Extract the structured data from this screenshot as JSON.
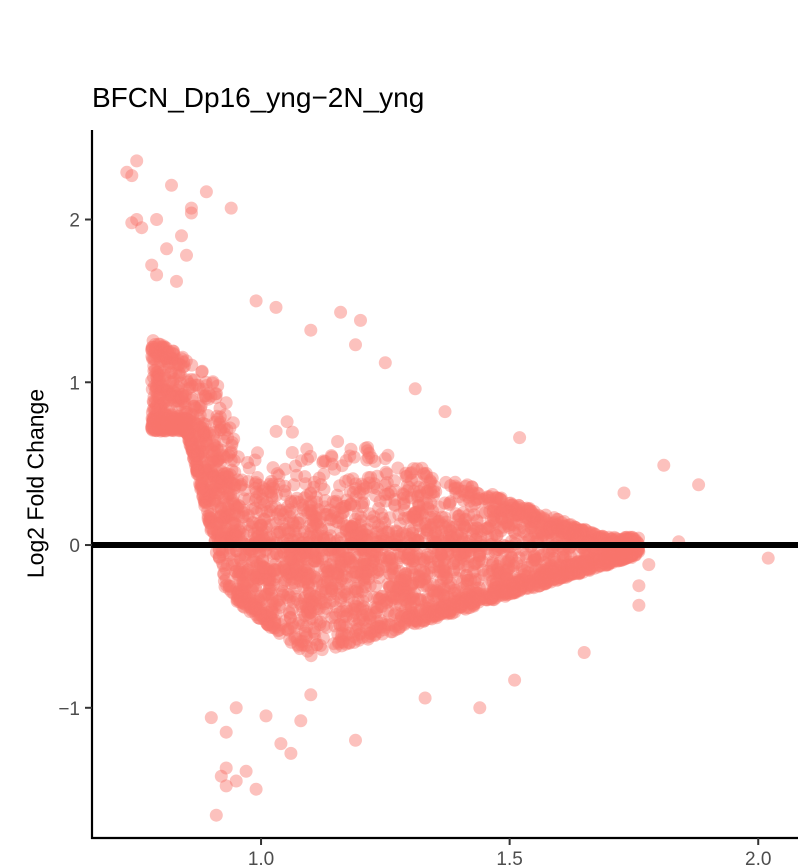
{
  "chart_data": {
    "type": "scatter",
    "title": "BFCN_Dp16_yng−2N_yng",
    "xlabel": "",
    "ylabel": "Log2 Fold Change",
    "xlim": [
      0.66,
      2.08
    ],
    "ylim": [
      -1.8,
      2.55
    ],
    "x_ticks": [
      {
        "value": 1.0,
        "label": "1.0"
      },
      {
        "value": 1.5,
        "label": "1.5"
      },
      {
        "value": 2.0,
        "label": "2.0"
      }
    ],
    "y_ticks": [
      {
        "value": -1,
        "label": "−1"
      },
      {
        "value": 0,
        "label": "0"
      },
      {
        "value": 1,
        "label": "1"
      },
      {
        "value": 2,
        "label": "2"
      }
    ],
    "reference_line": {
      "y": 0,
      "color": "#000000"
    },
    "point_color": "#F8766D",
    "point_opacity": 0.45,
    "grid": false,
    "legend": "none",
    "outlier_points": [
      {
        "x": 0.73,
        "y": 2.29
      },
      {
        "x": 0.74,
        "y": 2.27
      },
      {
        "x": 0.75,
        "y": 2.36
      },
      {
        "x": 0.74,
        "y": 1.98
      },
      {
        "x": 0.75,
        "y": 2.0
      },
      {
        "x": 0.76,
        "y": 1.95
      },
      {
        "x": 0.79,
        "y": 2.0
      },
      {
        "x": 0.82,
        "y": 2.21
      },
      {
        "x": 0.89,
        "y": 2.17
      },
      {
        "x": 0.86,
        "y": 2.07
      },
      {
        "x": 0.86,
        "y": 2.04
      },
      {
        "x": 0.94,
        "y": 2.07
      },
      {
        "x": 0.78,
        "y": 1.72
      },
      {
        "x": 0.81,
        "y": 1.82
      },
      {
        "x": 0.84,
        "y": 1.9
      },
      {
        "x": 0.85,
        "y": 1.78
      },
      {
        "x": 0.79,
        "y": 1.66
      },
      {
        "x": 0.83,
        "y": 1.62
      },
      {
        "x": 0.99,
        "y": 1.5
      },
      {
        "x": 1.03,
        "y": 1.46
      },
      {
        "x": 1.1,
        "y": 1.32
      },
      {
        "x": 1.16,
        "y": 1.43
      },
      {
        "x": 1.2,
        "y": 1.38
      },
      {
        "x": 1.19,
        "y": 1.23
      },
      {
        "x": 1.25,
        "y": 1.12
      },
      {
        "x": 1.31,
        "y": 0.96
      },
      {
        "x": 1.37,
        "y": 0.82
      },
      {
        "x": 1.52,
        "y": 0.66
      },
      {
        "x": 1.81,
        "y": 0.49
      },
      {
        "x": 1.88,
        "y": 0.37
      },
      {
        "x": 1.73,
        "y": 0.32
      },
      {
        "x": 2.02,
        "y": -0.08
      },
      {
        "x": 1.84,
        "y": 0.02
      },
      {
        "x": 1.78,
        "y": -0.12
      },
      {
        "x": 1.76,
        "y": -0.25
      },
      {
        "x": 1.76,
        "y": -0.37
      },
      {
        "x": 1.65,
        "y": -0.66
      },
      {
        "x": 1.51,
        "y": -0.83
      },
      {
        "x": 1.44,
        "y": -1.0
      },
      {
        "x": 1.33,
        "y": -0.94
      },
      {
        "x": 1.19,
        "y": -1.2
      },
      {
        "x": 1.1,
        "y": -0.92
      },
      {
        "x": 1.04,
        "y": -1.22
      },
      {
        "x": 1.01,
        "y": -1.05
      },
      {
        "x": 0.97,
        "y": -1.39
      },
      {
        "x": 0.95,
        "y": -1.45
      },
      {
        "x": 0.93,
        "y": -1.37
      },
      {
        "x": 0.92,
        "y": -1.42
      },
      {
        "x": 0.93,
        "y": -1.48
      },
      {
        "x": 0.99,
        "y": -1.5
      },
      {
        "x": 0.91,
        "y": -1.66
      },
      {
        "x": 0.93,
        "y": -1.15
      },
      {
        "x": 0.95,
        "y": -1.0
      },
      {
        "x": 0.9,
        "y": -1.06
      },
      {
        "x": 1.06,
        "y": -1.28
      },
      {
        "x": 1.08,
        "y": -1.08
      }
    ]
  }
}
